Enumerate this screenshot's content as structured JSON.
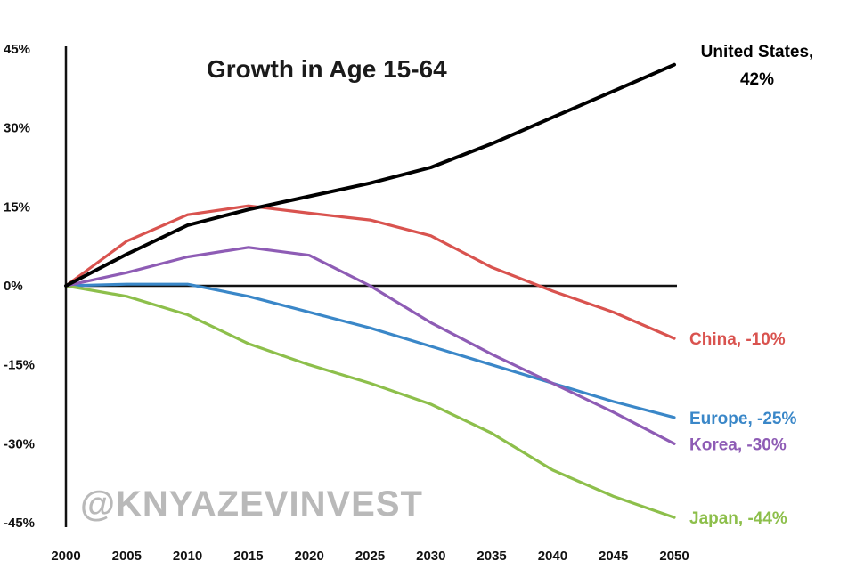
{
  "chart_data": {
    "type": "line",
    "title": "Growth in Age 15-64",
    "xlabel": "",
    "ylabel": "",
    "x": [
      2000,
      2005,
      2010,
      2015,
      2020,
      2025,
      2030,
      2035,
      2040,
      2045,
      2050
    ],
    "x_tick_labels": [
      "2000",
      "2005",
      "2010",
      "2015",
      "2020",
      "2025",
      "2030",
      "2035",
      "2040",
      "2045",
      "2050"
    ],
    "y_ticks": [
      45,
      30,
      15,
      0,
      -15,
      -30,
      -45
    ],
    "y_tick_labels": [
      "45%",
      "30%",
      "15%",
      "0%",
      "-15%",
      "-30%",
      "-45%"
    ],
    "xlim": [
      2000,
      2050
    ],
    "ylim": [
      -45,
      45
    ],
    "grid": false,
    "legend": "none",
    "series": [
      {
        "label": "United States, 42%",
        "label_lines": [
          "United States,",
          "42%"
        ],
        "color": "#000000",
        "values": [
          0,
          6,
          11.5,
          14.5,
          17,
          19.5,
          22.5,
          27,
          32,
          37,
          42
        ]
      },
      {
        "label": "China, -10%",
        "color": "#d9534f",
        "values": [
          0,
          8.5,
          13.5,
          15.2,
          13.8,
          12.5,
          9.5,
          3.5,
          -1,
          -5,
          -10
        ]
      },
      {
        "label": "Europe, -25%",
        "color": "#3a87c8",
        "values": [
          0,
          0.3,
          0.3,
          -2,
          -5,
          -8,
          -11.5,
          -15,
          -18.5,
          -22,
          -25
        ]
      },
      {
        "label": "Korea, -30%",
        "color": "#8e5cb5",
        "values": [
          0,
          2.5,
          5.5,
          7.3,
          5.8,
          0,
          -7,
          -13,
          -18.5,
          -24,
          -30
        ]
      },
      {
        "label": "Japan, -44%",
        "color": "#8dbf4b",
        "values": [
          0,
          -2,
          -5.5,
          -11,
          -15,
          -18.5,
          -22.5,
          -28,
          -35,
          -40,
          -44
        ]
      }
    ],
    "watermark": "@KNYAZEVINVEST"
  }
}
